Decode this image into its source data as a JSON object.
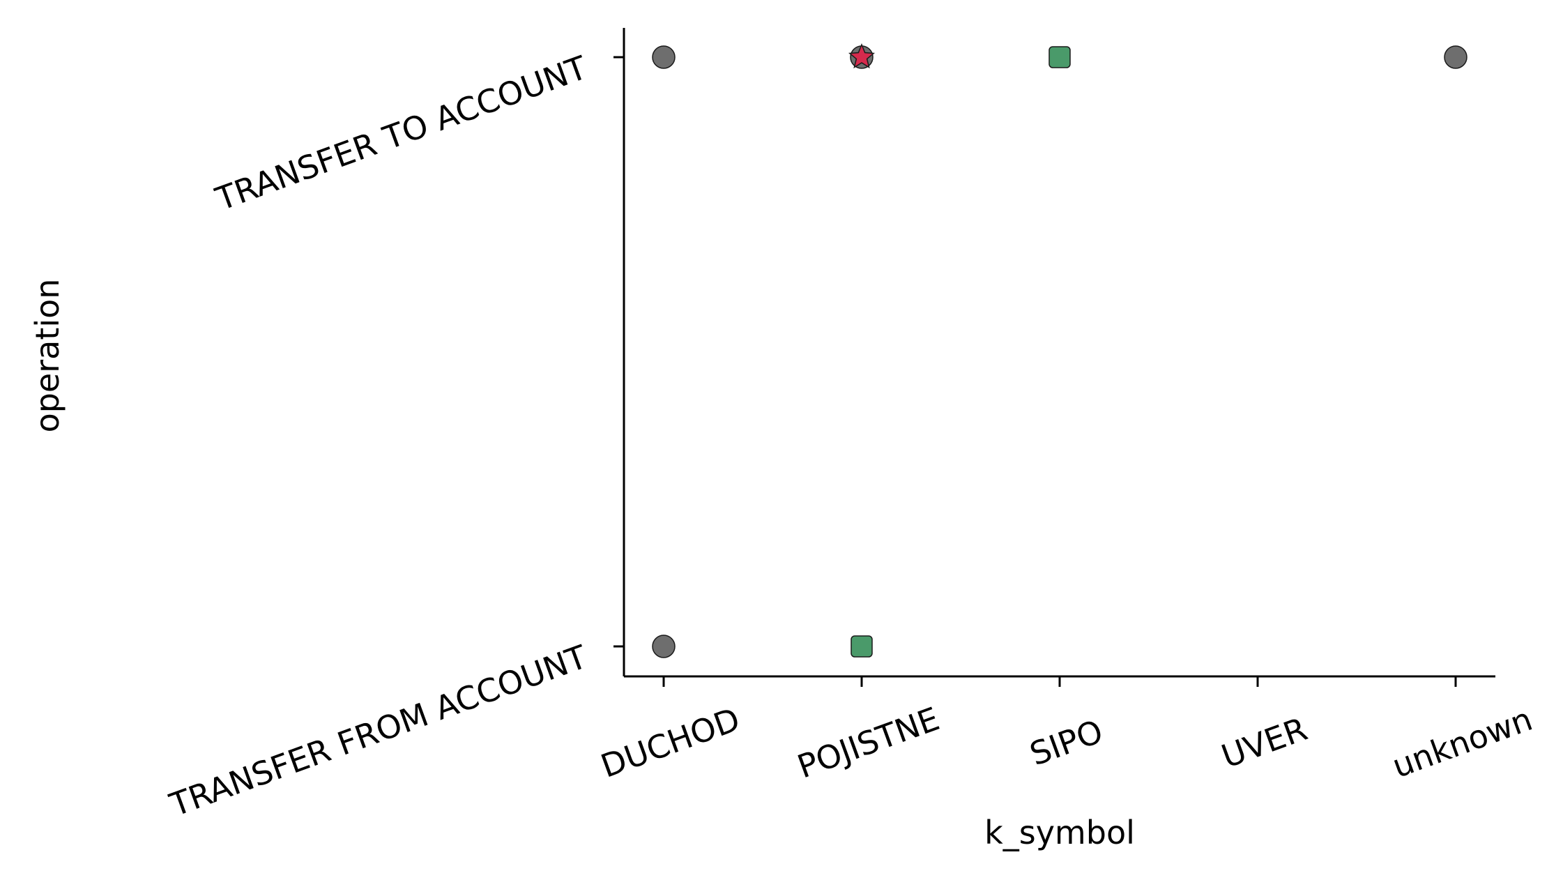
{
  "chart_data": {
    "type": "scatter",
    "title": "",
    "xlabel": "k_symbol",
    "ylabel": "operation",
    "x_categories": [
      "DUCHOD",
      "POJISTNE",
      "SIPO",
      "UVER",
      "unknown"
    ],
    "y_categories": [
      "TRANSFER FROM ACCOUNT",
      "TRANSFER TO ACCOUNT"
    ],
    "grid": false,
    "legend": false,
    "points": [
      {
        "x": "DUCHOD",
        "y": "TRANSFER TO ACCOUNT",
        "marker": "circle",
        "color": "#6e6e6e"
      },
      {
        "x": "POJISTNE",
        "y": "TRANSFER TO ACCOUNT",
        "marker": "circle",
        "color": "#6e6e6e"
      },
      {
        "x": "POJISTNE",
        "y": "TRANSFER TO ACCOUNT",
        "marker": "star",
        "color": "#d62a4d"
      },
      {
        "x": "SIPO",
        "y": "TRANSFER TO ACCOUNT",
        "marker": "square",
        "color": "#4a9a6a"
      },
      {
        "x": "unknown",
        "y": "TRANSFER TO ACCOUNT",
        "marker": "circle",
        "color": "#6e6e6e"
      },
      {
        "x": "DUCHOD",
        "y": "TRANSFER FROM ACCOUNT",
        "marker": "circle",
        "color": "#6e6e6e"
      },
      {
        "x": "POJISTNE",
        "y": "TRANSFER FROM ACCOUNT",
        "marker": "square",
        "color": "#4a9a6a"
      }
    ]
  }
}
